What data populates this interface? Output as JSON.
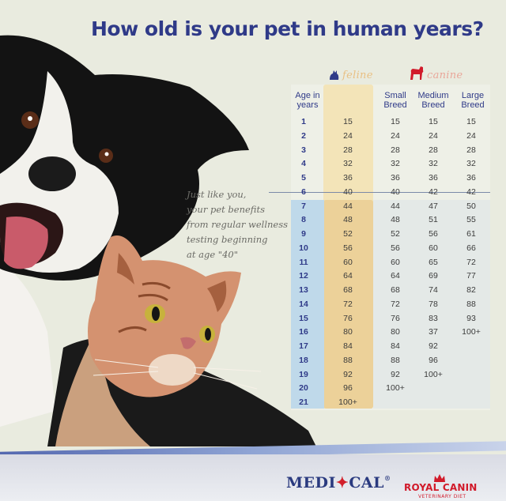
{
  "title": "How old is your pet in human years?",
  "subtitle": "Just like you,\nyour pet benefits\nfrom regular wellness\ntesting beginning\nat age \"40\"",
  "categories": {
    "feline": "feline",
    "canine": "canine"
  },
  "headers": {
    "age": "Age in years",
    "small": "Small Breed",
    "medium": "Medium Breed",
    "large": "Large Breed"
  },
  "rows": [
    {
      "age": "1",
      "feline": "15",
      "small": "15",
      "medium": "15",
      "large": "15"
    },
    {
      "age": "2",
      "feline": "24",
      "small": "24",
      "medium": "24",
      "large": "24"
    },
    {
      "age": "3",
      "feline": "28",
      "small": "28",
      "medium": "28",
      "large": "28"
    },
    {
      "age": "4",
      "feline": "32",
      "small": "32",
      "medium": "32",
      "large": "32"
    },
    {
      "age": "5",
      "feline": "36",
      "small": "36",
      "medium": "36",
      "large": "36"
    },
    {
      "age": "6",
      "feline": "40",
      "small": "40",
      "medium": "42",
      "large": "42"
    },
    {
      "age": "7",
      "feline": "44",
      "small": "44",
      "medium": "47",
      "large": "50"
    },
    {
      "age": "8",
      "feline": "48",
      "small": "48",
      "medium": "51",
      "large": "55"
    },
    {
      "age": "9",
      "feline": "52",
      "small": "52",
      "medium": "56",
      "large": "61"
    },
    {
      "age": "10",
      "feline": "56",
      "small": "56",
      "medium": "60",
      "large": "66"
    },
    {
      "age": "11",
      "feline": "60",
      "small": "60",
      "medium": "65",
      "large": "72"
    },
    {
      "age": "12",
      "feline": "64",
      "small": "64",
      "medium": "69",
      "large": "77"
    },
    {
      "age": "13",
      "feline": "68",
      "small": "68",
      "medium": "74",
      "large": "82"
    },
    {
      "age": "14",
      "feline": "72",
      "small": "72",
      "medium": "78",
      "large": "88"
    },
    {
      "age": "15",
      "feline": "76",
      "small": "76",
      "medium": "83",
      "large": "93"
    },
    {
      "age": "16",
      "feline": "80",
      "small": "80",
      "medium": "37",
      "large": "100+"
    },
    {
      "age": "17",
      "feline": "84",
      "small": "84",
      "medium": "92",
      "large": ""
    },
    {
      "age": "18",
      "feline": "88",
      "small": "88",
      "medium": "96",
      "large": ""
    },
    {
      "age": "19",
      "feline": "92",
      "small": "92",
      "medium": "100+",
      "large": ""
    },
    {
      "age": "20",
      "feline": "96",
      "small": "100+",
      "medium": "",
      "large": ""
    },
    {
      "age": "21",
      "feline": "100+",
      "small": "",
      "medium": "",
      "large": ""
    }
  ],
  "brands": {
    "medical_left": "MEDI",
    "medical_right": "CAL",
    "medical_reg": "®",
    "royal": "ROYAL CANIN",
    "royal_sub": "VETERINARY DIET"
  },
  "colors": {
    "title": "#2f3a88",
    "feline_band": "#f3e4b8",
    "age_band": "#bfd9ea",
    "royal_red": "#d11a2a"
  }
}
